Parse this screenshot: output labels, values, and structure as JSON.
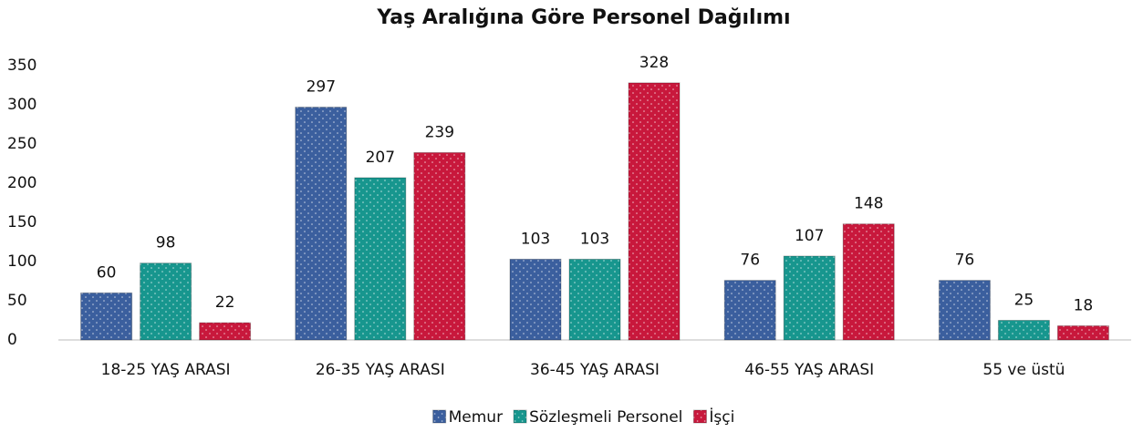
{
  "chart_data": {
    "type": "bar",
    "title": "Yaş Aralığına Göre Personel Dağılımı",
    "categories": [
      "18-25 YAŞ ARASI",
      "26-35 YAŞ ARASI",
      "36-45 YAŞ ARASI",
      "46-55 YAŞ ARASI",
      "55 ve üstü"
    ],
    "series": [
      {
        "name": "Memur",
        "color": "#3b5f9e",
        "values": [
          60,
          297,
          103,
          76,
          76
        ]
      },
      {
        "name": "Sözleşmeli Personel",
        "color": "#17968e",
        "values": [
          98,
          207,
          103,
          107,
          25
        ]
      },
      {
        "name": "İşçi",
        "color": "#c8183c",
        "values": [
          22,
          239,
          328,
          148,
          18
        ]
      }
    ],
    "ylim": [
      0,
      350
    ],
    "yticks": [
      0,
      50,
      100,
      150,
      200,
      250,
      300,
      350
    ],
    "grid": false,
    "legend": "bottom"
  }
}
